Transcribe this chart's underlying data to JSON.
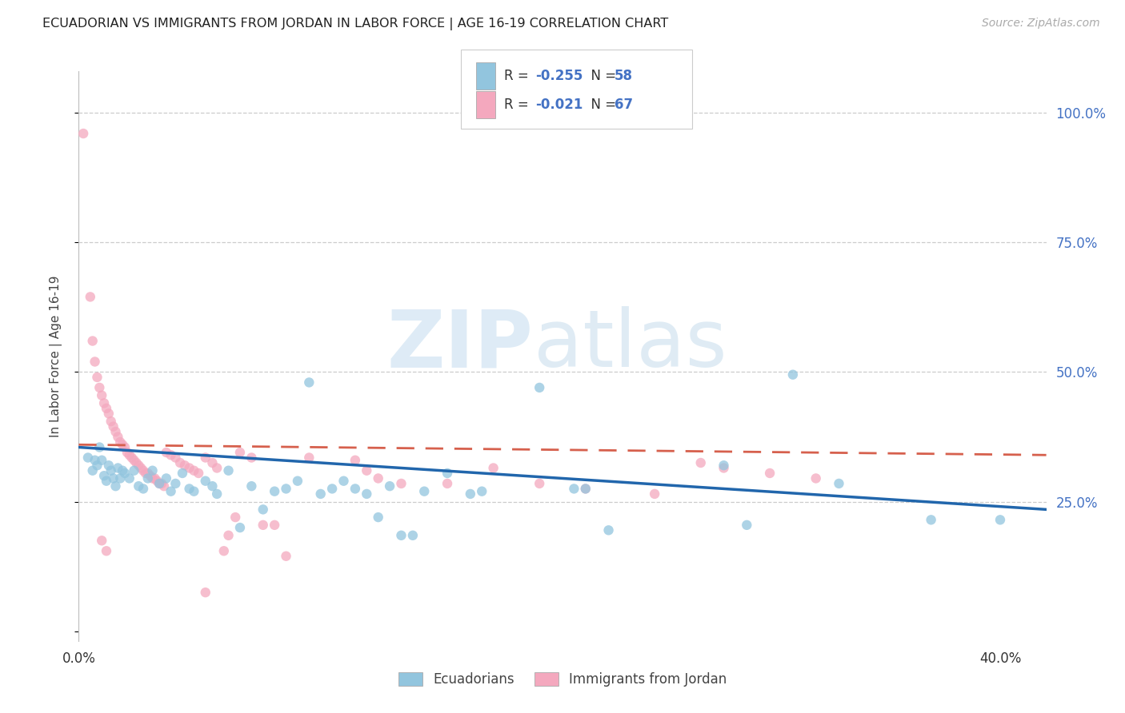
{
  "title": "ECUADORIAN VS IMMIGRANTS FROM JORDAN IN LABOR FORCE | AGE 16-19 CORRELATION CHART",
  "source": "Source: ZipAtlas.com",
  "ylabel": "In Labor Force | Age 16-19",
  "right_yticks": [
    "100.0%",
    "75.0%",
    "50.0%",
    "25.0%"
  ],
  "right_ytick_vals": [
    1.0,
    0.75,
    0.5,
    0.25
  ],
  "xlim": [
    0.0,
    0.42
  ],
  "ylim": [
    -0.02,
    1.08
  ],
  "watermark_zip": "ZIP",
  "watermark_atlas": "atlas",
  "blue_color": "#92c5de",
  "pink_color": "#f4a8be",
  "blue_line_color": "#2166ac",
  "pink_line_color": "#d6604d",
  "blue_line_y0": 0.355,
  "blue_line_y1": 0.235,
  "pink_line_y0": 0.36,
  "pink_line_y1": 0.34,
  "blue_scatter": [
    [
      0.004,
      0.335
    ],
    [
      0.006,
      0.31
    ],
    [
      0.007,
      0.33
    ],
    [
      0.008,
      0.32
    ],
    [
      0.009,
      0.355
    ],
    [
      0.01,
      0.33
    ],
    [
      0.011,
      0.3
    ],
    [
      0.012,
      0.29
    ],
    [
      0.013,
      0.32
    ],
    [
      0.014,
      0.31
    ],
    [
      0.015,
      0.295
    ],
    [
      0.016,
      0.28
    ],
    [
      0.017,
      0.315
    ],
    [
      0.018,
      0.295
    ],
    [
      0.019,
      0.31
    ],
    [
      0.02,
      0.305
    ],
    [
      0.022,
      0.295
    ],
    [
      0.024,
      0.31
    ],
    [
      0.026,
      0.28
    ],
    [
      0.028,
      0.275
    ],
    [
      0.03,
      0.295
    ],
    [
      0.032,
      0.31
    ],
    [
      0.035,
      0.285
    ],
    [
      0.038,
      0.295
    ],
    [
      0.04,
      0.27
    ],
    [
      0.042,
      0.285
    ],
    [
      0.045,
      0.305
    ],
    [
      0.048,
      0.275
    ],
    [
      0.05,
      0.27
    ],
    [
      0.055,
      0.29
    ],
    [
      0.058,
      0.28
    ],
    [
      0.06,
      0.265
    ],
    [
      0.065,
      0.31
    ],
    [
      0.07,
      0.2
    ],
    [
      0.075,
      0.28
    ],
    [
      0.08,
      0.235
    ],
    [
      0.085,
      0.27
    ],
    [
      0.09,
      0.275
    ],
    [
      0.095,
      0.29
    ],
    [
      0.1,
      0.48
    ],
    [
      0.105,
      0.265
    ],
    [
      0.11,
      0.275
    ],
    [
      0.115,
      0.29
    ],
    [
      0.12,
      0.275
    ],
    [
      0.125,
      0.265
    ],
    [
      0.13,
      0.22
    ],
    [
      0.135,
      0.28
    ],
    [
      0.14,
      0.185
    ],
    [
      0.145,
      0.185
    ],
    [
      0.15,
      0.27
    ],
    [
      0.16,
      0.305
    ],
    [
      0.17,
      0.265
    ],
    [
      0.175,
      0.27
    ],
    [
      0.2,
      0.47
    ],
    [
      0.215,
      0.275
    ],
    [
      0.22,
      0.275
    ],
    [
      0.23,
      0.195
    ],
    [
      0.28,
      0.32
    ],
    [
      0.29,
      0.205
    ],
    [
      0.31,
      0.495
    ],
    [
      0.33,
      0.285
    ],
    [
      0.37,
      0.215
    ],
    [
      0.4,
      0.215
    ]
  ],
  "pink_scatter": [
    [
      0.002,
      0.96
    ],
    [
      0.005,
      0.645
    ],
    [
      0.006,
      0.56
    ],
    [
      0.007,
      0.52
    ],
    [
      0.008,
      0.49
    ],
    [
      0.009,
      0.47
    ],
    [
      0.01,
      0.455
    ],
    [
      0.011,
      0.44
    ],
    [
      0.012,
      0.43
    ],
    [
      0.013,
      0.42
    ],
    [
      0.014,
      0.405
    ],
    [
      0.015,
      0.395
    ],
    [
      0.016,
      0.385
    ],
    [
      0.017,
      0.375
    ],
    [
      0.018,
      0.365
    ],
    [
      0.019,
      0.36
    ],
    [
      0.02,
      0.355
    ],
    [
      0.021,
      0.345
    ],
    [
      0.022,
      0.34
    ],
    [
      0.023,
      0.335
    ],
    [
      0.024,
      0.33
    ],
    [
      0.025,
      0.325
    ],
    [
      0.026,
      0.32
    ],
    [
      0.027,
      0.315
    ],
    [
      0.028,
      0.31
    ],
    [
      0.029,
      0.305
    ],
    [
      0.03,
      0.305
    ],
    [
      0.031,
      0.3
    ],
    [
      0.032,
      0.295
    ],
    [
      0.033,
      0.295
    ],
    [
      0.034,
      0.29
    ],
    [
      0.035,
      0.285
    ],
    [
      0.036,
      0.285
    ],
    [
      0.037,
      0.28
    ],
    [
      0.038,
      0.345
    ],
    [
      0.04,
      0.34
    ],
    [
      0.042,
      0.335
    ],
    [
      0.044,
      0.325
    ],
    [
      0.046,
      0.32
    ],
    [
      0.048,
      0.315
    ],
    [
      0.05,
      0.31
    ],
    [
      0.052,
      0.305
    ],
    [
      0.055,
      0.335
    ],
    [
      0.058,
      0.325
    ],
    [
      0.06,
      0.315
    ],
    [
      0.01,
      0.175
    ],
    [
      0.012,
      0.155
    ],
    [
      0.063,
      0.155
    ],
    [
      0.065,
      0.185
    ],
    [
      0.068,
      0.22
    ],
    [
      0.07,
      0.345
    ],
    [
      0.075,
      0.335
    ],
    [
      0.08,
      0.205
    ],
    [
      0.085,
      0.205
    ],
    [
      0.09,
      0.145
    ],
    [
      0.1,
      0.335
    ],
    [
      0.12,
      0.33
    ],
    [
      0.125,
      0.31
    ],
    [
      0.13,
      0.295
    ],
    [
      0.14,
      0.285
    ],
    [
      0.16,
      0.285
    ],
    [
      0.18,
      0.315
    ],
    [
      0.2,
      0.285
    ],
    [
      0.22,
      0.275
    ],
    [
      0.25,
      0.265
    ],
    [
      0.27,
      0.325
    ],
    [
      0.28,
      0.315
    ],
    [
      0.3,
      0.305
    ],
    [
      0.32,
      0.295
    ],
    [
      0.055,
      0.075
    ]
  ]
}
